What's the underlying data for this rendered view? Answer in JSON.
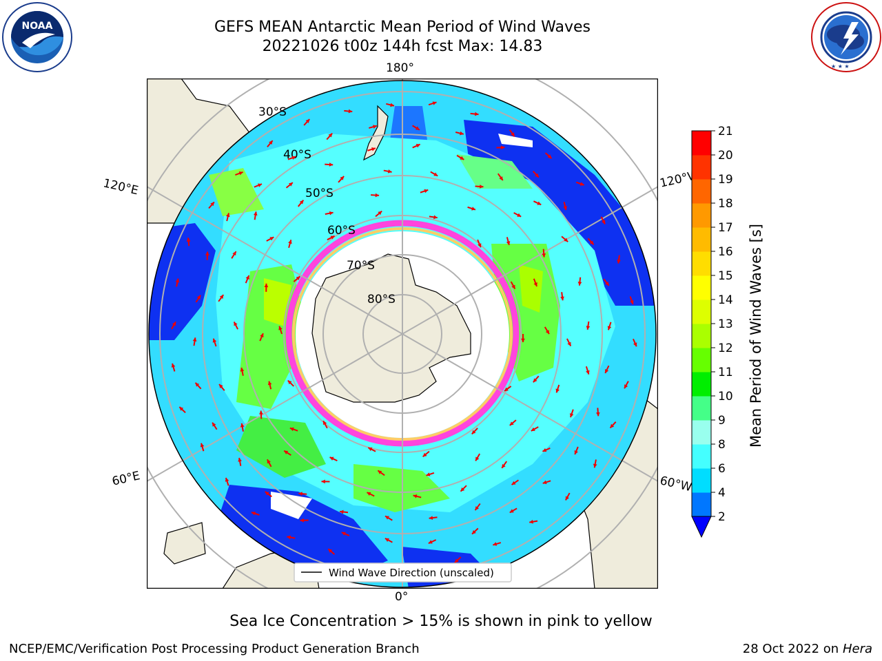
{
  "header": {
    "title_line1": "GEFS MEAN Antarctic Mean Period of Wind Waves",
    "title_line2": "20221026 t00z 144h fcst   Max: 14.83"
  },
  "logos": {
    "noaa": {
      "text": "NOAA",
      "ring_text": "NATIONAL OCEANIC AND ATMOSPHERIC ADMINISTRATION · U.S. DEPARTMENT OF COMMERCE"
    },
    "nws": {
      "ring_text": "NATIONAL WEATHER SERVICE"
    }
  },
  "map": {
    "longitude_labels": {
      "top": "180°",
      "bottom": "0°",
      "upper_left": "120°E",
      "lower_left": "60°E",
      "upper_right": "120°W",
      "lower_right": "60°W"
    },
    "latitude_labels": [
      "30°S",
      "40°S",
      "50°S",
      "60°S",
      "70°S",
      "80°S"
    ],
    "legend": "Wind Wave Direction (unscaled)",
    "colors": {
      "land": "#efecdc",
      "ice_pink": "#ff44dd",
      "ice_yellow": "#ffcc66",
      "arrow": "#ee0000",
      "grid": "#b0b0b0"
    }
  },
  "colorbar": {
    "label": "Mean Period of Wind Waves [s]",
    "ticks": [
      "2",
      "4",
      "6",
      "8",
      "9",
      "10",
      "11",
      "12",
      "13",
      "14",
      "15",
      "16",
      "17",
      "18",
      "19",
      "20",
      "21"
    ],
    "colors": [
      "#0000ee",
      "#0077ff",
      "#00ddff",
      "#44ffff",
      "#99ffee",
      "#44ff88",
      "#00ee00",
      "#66ff00",
      "#aaff00",
      "#ddff00",
      "#ffff00",
      "#ffdd00",
      "#ffbb00",
      "#ff9900",
      "#ff6600",
      "#ff3300",
      "#ff0000"
    ],
    "extend_color": "#0000ff"
  },
  "caption": "Sea Ice Concentration > 15% is shown in pink to yellow",
  "footer": {
    "left": "NCEP/EMC/Verification Post Processing Product Generation Branch",
    "date": "28 Oct 2022 on",
    "machine": "Hera"
  }
}
